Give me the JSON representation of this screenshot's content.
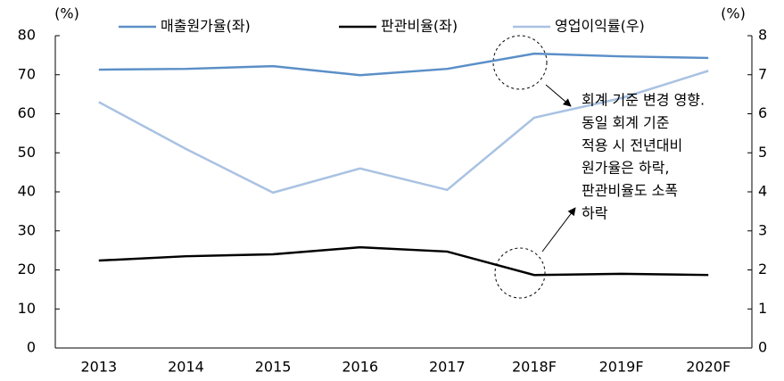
{
  "chart_data": {
    "type": "line",
    "y_unit": "(%)",
    "y2_unit": "(%)",
    "categories": [
      "2013",
      "2014",
      "2015",
      "2016",
      "2017",
      "2018F",
      "2019F",
      "2020F"
    ],
    "series": [
      {
        "name": "매출원가율(좌)",
        "color": "#5b8fc7",
        "values": [
          71.3,
          71.5,
          72.2,
          69.9,
          71.5,
          75.4,
          74.7,
          74.3
        ]
      },
      {
        "name": "판관비율(좌)",
        "color": "#000000",
        "values": [
          22.4,
          23.5,
          24.0,
          25.8,
          24.7,
          18.7,
          19.0,
          18.7
        ]
      },
      {
        "name": "영업이익률(우)",
        "color": "#a9c2e2",
        "axis": "y2",
        "values": [
          6.3,
          5.1,
          3.98,
          4.6,
          4.05,
          5.9,
          6.4,
          7.1
        ]
      }
    ],
    "ylim": [
      0,
      80
    ],
    "yticks": [
      0,
      10,
      20,
      30,
      40,
      50,
      60,
      70,
      80
    ],
    "y2lim": [
      0,
      8
    ],
    "y2ticks": [
      0,
      1,
      2,
      3,
      4,
      5,
      6,
      7,
      8
    ],
    "annotation": [
      "회계 기준 변경 영향.",
      "동일 회계 기준",
      "적용 시 전년대비",
      "원가율은 하락,",
      "판관비율도 소폭",
      "하락"
    ]
  }
}
